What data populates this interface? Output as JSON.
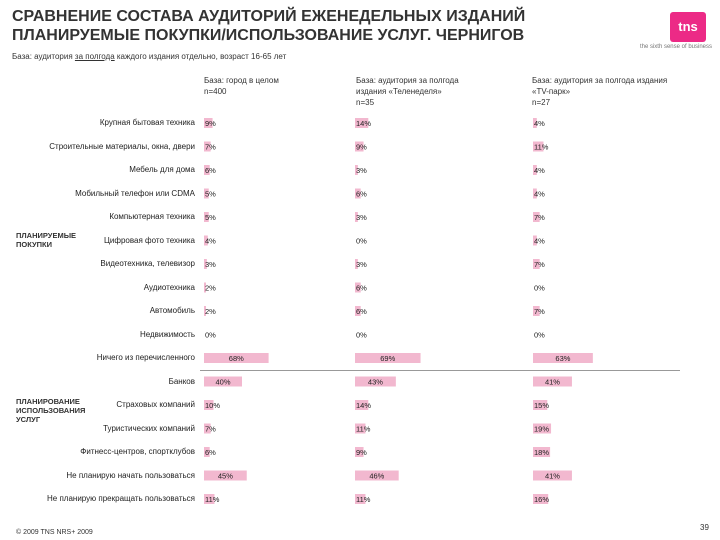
{
  "header": {
    "title_line1": "СРАВНЕНИЕ СОСТАВА АУДИТОРИЙ ЕЖЕНЕДЕЛЬНЫХ ИЗДАНИЙ",
    "title_line2": "ПЛАНИРУЕМЫЕ ПОКУПКИ/ИСПОЛЬЗОВАНИЕ УСЛУГ. ЧЕРНИГОВ",
    "logo_text": "tns",
    "tagline": "the sixth sense of business",
    "subtitle_pre": "База: аудитория ",
    "subtitle_underlined": "за полгода",
    "subtitle_post": " каждого издания отдельно, возраст 16-65 лет"
  },
  "sections": {
    "purchases": "ПЛАНИРУЕМЫЕ ПОКУПКИ",
    "services": "ПЛАНИРОВАНИЕ ИСПОЛЬЗОВАНИЯ УСЛУГ"
  },
  "footer": {
    "copyright": "© 2009 TNS   NRS+ 2009",
    "page": "39"
  },
  "colors": {
    "bar": "#f2b8cf",
    "accent": "#ec2a86"
  },
  "chart_data": {
    "type": "bar",
    "orientation": "horizontal",
    "series": [
      {
        "name": "База: город в целом n=400",
        "head1": "База: город в целом",
        "head2": "n=400",
        "head3": "",
        "values": [
          9,
          7,
          6,
          5,
          5,
          4,
          3,
          2,
          2,
          0,
          68,
          40,
          10,
          7,
          6,
          45,
          11
        ]
      },
      {
        "name": "База: аудитория за полгода издания «Теленеделя» n=35",
        "head1": "База: аудитория за полгода",
        "head2": "издания «Теленеделя»",
        "head3": "n=35",
        "values": [
          14,
          9,
          3,
          6,
          3,
          0,
          3,
          6,
          6,
          0,
          69,
          43,
          14,
          11,
          9,
          46,
          11
        ]
      },
      {
        "name": "База: аудитория за полгода издания «TV-парк» n=27",
        "head1": "База: аудитория за полгода издания",
        "head2": "«TV-парк»",
        "head3": "n=27",
        "values": [
          4,
          11,
          4,
          4,
          7,
          4,
          7,
          0,
          7,
          0,
          63,
          41,
          15,
          19,
          18,
          41,
          16
        ]
      }
    ],
    "categories": [
      "Крупная бытовая техника",
      "Строительные материалы, окна, двери",
      "Мебель для дома",
      "Мобильный телефон или CDMA",
      "Компьютерная техника",
      "Цифровая фото техника",
      "Видеотехника, телевизор",
      "Аудиотехника",
      "Автомобиль",
      "Недвижимость",
      "Ничего из перечисленного",
      "Банков",
      "Страховых компаний",
      "Туристических компаний",
      "Фитнесс-центров, спортклубов",
      "Не планирую начать пользоваться",
      "Не планирую прекращать пользоваться"
    ],
    "value_suffix": "%",
    "xlim": [
      0,
      100
    ]
  }
}
